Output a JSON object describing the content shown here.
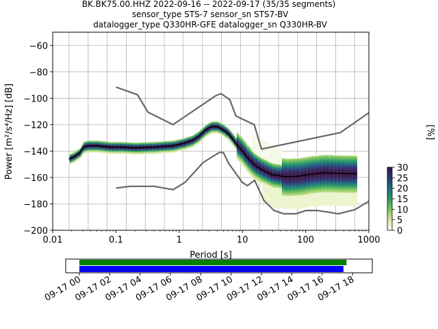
{
  "title_lines": [
    "BK.BK75.00.HHZ   2022-09-16 -- 2022-09-17  (35/35 segments)",
    "sensor_type STS-7 sensor_sn STS7-BV",
    "datalogger_type Q330HR-GFE datalogger_sn Q330HR-BV"
  ],
  "chart_data": {
    "type": "heatmap",
    "xlabel": "Period [s]",
    "ylabel": "Power [m²/s⁴/Hz] [dB]",
    "xscale": "log",
    "xlim": [
      0.01,
      1000
    ],
    "ylim": [
      -200,
      -50
    ],
    "x_ticks": [
      {
        "value": 0.01,
        "label": "0.01"
      },
      {
        "value": 0.1,
        "label": "0.1"
      },
      {
        "value": 1,
        "label": "1"
      },
      {
        "value": 10,
        "label": "10"
      },
      {
        "value": 100,
        "label": "100"
      },
      {
        "value": 1000,
        "label": "1000"
      }
    ],
    "y_ticks": [
      -60,
      -80,
      -100,
      -120,
      -140,
      -160,
      -180,
      -200
    ],
    "grid_periods": [
      0.0182,
      0.0364,
      0.0728,
      0.146,
      0.291,
      0.582,
      1.16,
      2.33,
      4.66,
      9.32,
      18.6,
      37.3,
      74.6,
      149,
      298,
      596
    ],
    "colorbar": {
      "label": "[%]",
      "range": [
        0,
        30
      ],
      "ticks": [
        0,
        5,
        10,
        15,
        20,
        25,
        30
      ],
      "stops": [
        "#ffffff",
        "#d8e89c",
        "#7cc55a",
        "#2a9b63",
        "#1a6f7a",
        "#2c3a78",
        "#3a1447"
      ]
    },
    "nhnm": {
      "x": [
        0.1,
        0.22,
        0.32,
        0.8,
        3.8,
        4.6,
        6.3,
        7.9,
        15.4,
        20,
        354.8,
        1000
      ],
      "y": [
        -91.5,
        -97.4,
        -110.5,
        -120,
        -98,
        -96.5,
        -101,
        -113.5,
        -120,
        -138.5,
        -126,
        -111
      ]
    },
    "nlnm": {
      "x": [
        0.1,
        0.17,
        0.4,
        0.8,
        1.24,
        2.4,
        4.3,
        5.0,
        6.0,
        10,
        12,
        15.6,
        21.9,
        31.6,
        45,
        70,
        101,
        154,
        328,
        600,
        1000
      ],
      "y": [
        -168,
        -166.7,
        -166.7,
        -169.2,
        -163.7,
        -148.6,
        -141.1,
        -141.1,
        -149,
        -163.8,
        -166.2,
        -162.1,
        -177.5,
        -185,
        -187.5,
        -187.5,
        -185,
        -185,
        -187.5,
        -184.4,
        -178
      ]
    },
    "mean": {
      "x": [
        0.018,
        0.022,
        0.027,
        0.03,
        0.035,
        0.05,
        0.08,
        0.12,
        0.2,
        0.4,
        0.8,
        1.2,
        1.6,
        2.0,
        2.6,
        3.2,
        4.0,
        5.0,
        6.0,
        7.0,
        8.0,
        10,
        12,
        15,
        20,
        30,
        50,
        80,
        120,
        200,
        400,
        650
      ],
      "y": [
        -146,
        -144,
        -141,
        -137,
        -136,
        -136,
        -137,
        -137,
        -137.5,
        -137,
        -136,
        -134,
        -132,
        -129,
        -124,
        -121.5,
        -121.5,
        -124,
        -127,
        -131,
        -135,
        -140,
        -145,
        -150,
        -154,
        -158,
        -159.5,
        -159,
        -157.5,
        -156.5,
        -157,
        -157
      ]
    },
    "time_axis": {
      "labels": [
        "09-17 00",
        "09-17 02",
        "09-17 04",
        "09-17 06",
        "09-17 08",
        "09-17 10",
        "09-17 12",
        "09-17 14",
        "09-17 16",
        "09-17 18"
      ],
      "range_hours": [
        -0.9,
        19.3
      ],
      "data_coverage_hours": [
        0,
        17.6
      ],
      "processed_coverage_hours": [
        0,
        17.4
      ],
      "data_color": "#008000",
      "processed_color": "#0000ff"
    }
  }
}
